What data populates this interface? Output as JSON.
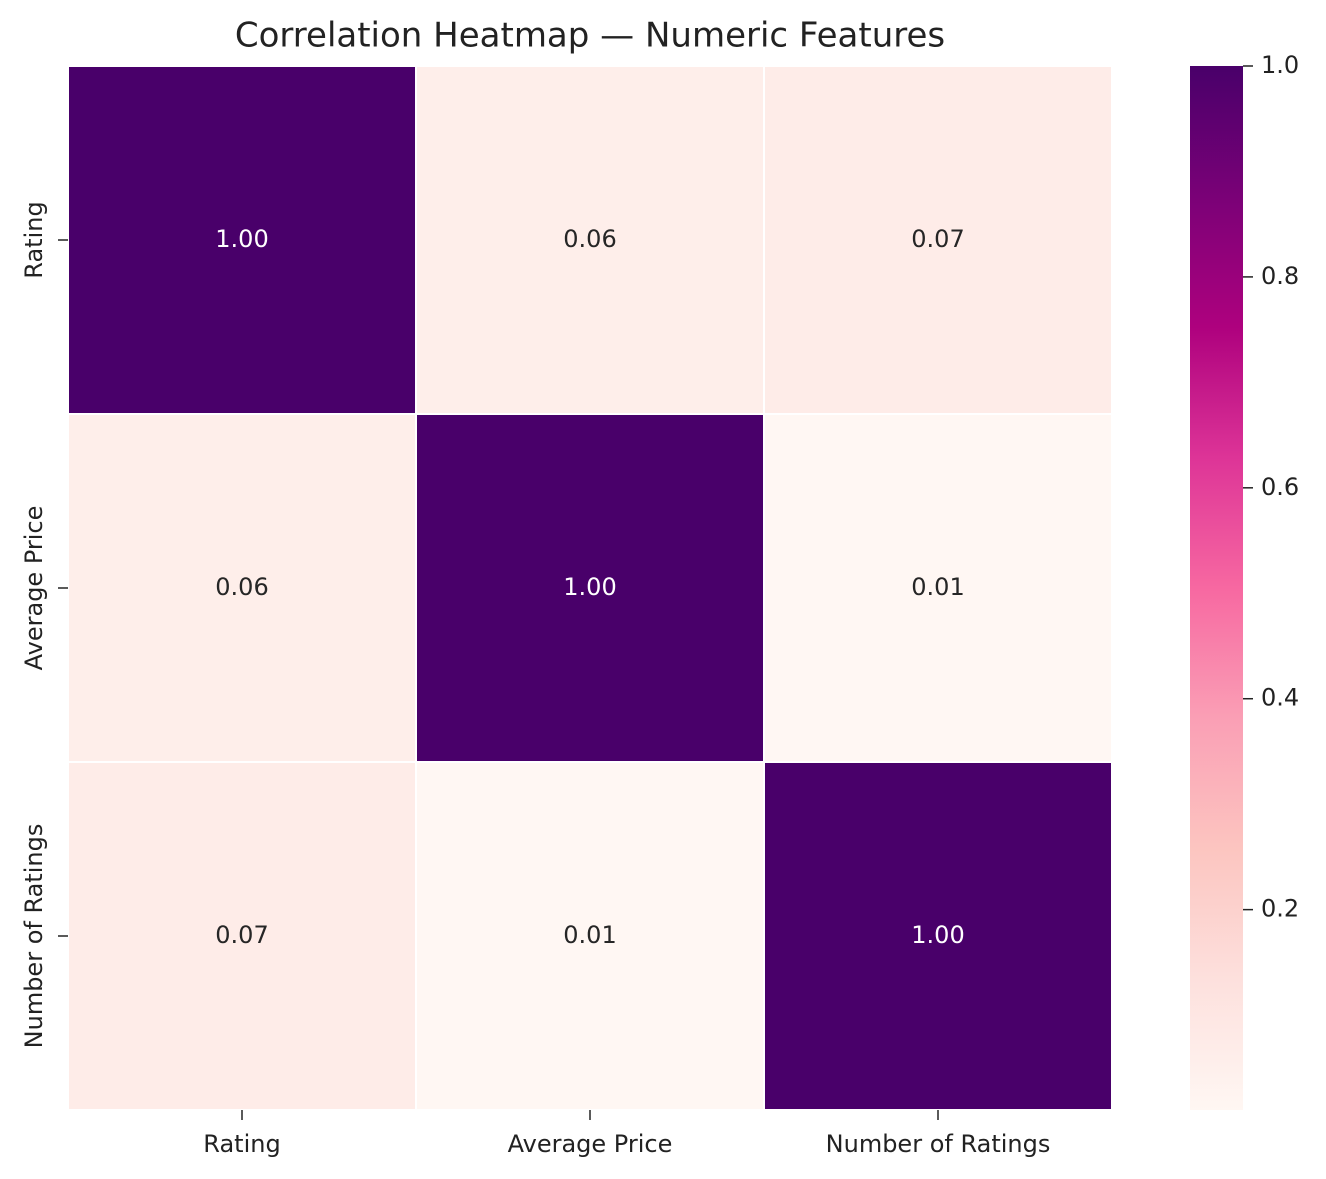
{
  "chart_data": {
    "type": "heatmap",
    "title": "Correlation Heatmap — Numeric Features",
    "x_categories": [
      "Rating",
      "Average Price",
      "Number of Ratings"
    ],
    "y_categories": [
      "Rating",
      "Average Price",
      "Number of Ratings"
    ],
    "values": [
      [
        1,
        0.06,
        0.07
      ],
      [
        0.06,
        1,
        0.01
      ],
      [
        0.07,
        0.01,
        1
      ]
    ],
    "value_labels": [
      [
        "1.00",
        "0.06",
        "0.07"
      ],
      [
        "0.06",
        "1.00",
        "0.01"
      ],
      [
        "0.07",
        "0.01",
        "1.00"
      ]
    ],
    "colormap": "RdPu",
    "clim": [
      0.01,
      1
    ],
    "cticks": [
      0.2,
      0.4,
      0.6,
      0.8,
      {
        "value": 1,
        "label": "1.0"
      }
    ]
  }
}
